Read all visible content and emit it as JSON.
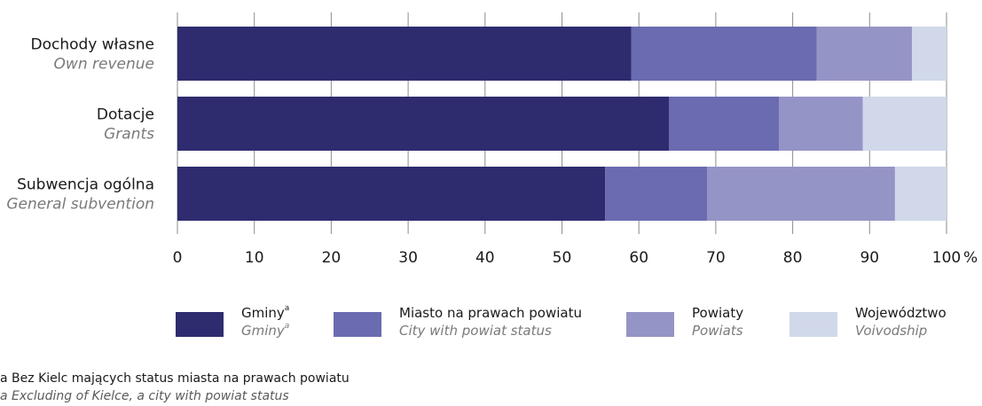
{
  "chart_data": {
    "type": "bar",
    "orientation": "horizontal",
    "stacked": true,
    "categories": [
      {
        "label": "Dochody własne",
        "label_en": "Own revenue"
      },
      {
        "label": "Dotacje",
        "label_en": "Grants"
      },
      {
        "label": "Subwencja ogólna",
        "label_en": "General subvention"
      }
    ],
    "series": [
      {
        "name": "Gminy",
        "name_en": "Gminy",
        "footnote_mark": "a",
        "color": "#2e2c6f",
        "values": [
          59.0,
          63.9,
          55.6
        ]
      },
      {
        "name": "Miasto na prawach powiatu",
        "name_en": "City with powiat status",
        "color": "#6a6bb0",
        "values": [
          24.1,
          14.3,
          13.3
        ]
      },
      {
        "name": "Powiaty",
        "name_en": "Powiats",
        "color": "#9594c6",
        "values": [
          12.4,
          10.9,
          24.4
        ]
      },
      {
        "name": "Województwo",
        "name_en": "Voivodship",
        "color": "#d0d8ea",
        "values": [
          4.5,
          10.9,
          6.7
        ]
      }
    ],
    "xlim": [
      0,
      100
    ],
    "xticks": [
      0,
      10,
      20,
      30,
      40,
      50,
      60,
      70,
      80,
      90,
      100
    ],
    "x_unit": "%",
    "grid": true,
    "legend_position": "bottom",
    "footnote": {
      "mark": "a",
      "text": "Bez Kielc mających status miasta na prawach powiatu",
      "text_en": "Excluding of Kielce, a city with powiat status"
    }
  }
}
